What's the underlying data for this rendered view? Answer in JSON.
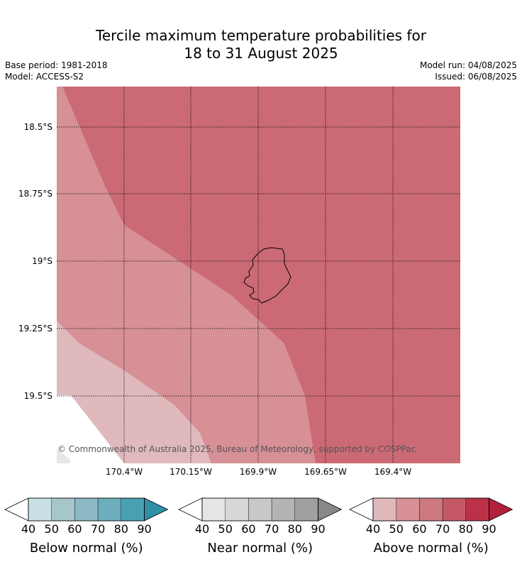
{
  "header": {
    "title_line1": "Tercile maximum temperature probabilities for",
    "title_line2": "18 to 31 August 2025",
    "base_period": "Base period: 1981-2018",
    "model": "Model: ACCESS-S2",
    "model_run": "Model run: 04/08/2025",
    "issued": "Issued: 06/08/2025"
  },
  "map": {
    "lat_labels": [
      "18.5°S",
      "18.75°S",
      "19°S",
      "19.25°S",
      "19.5°S"
    ],
    "lon_labels": [
      "170.4°W",
      "170.15°W",
      "169.9°W",
      "169.65°W",
      "169.4°W"
    ],
    "copyright": "© Commonwealth of Australia 2025, Bureau of Meteorology, supported by COSPPac"
  },
  "colorbars": [
    {
      "name": "below",
      "title": "Below normal (%)",
      "ticks": [
        "40",
        "50",
        "60",
        "70",
        "80",
        "90"
      ],
      "colors": [
        "#c9e0e6",
        "#a6c6ca",
        "#8bb8c3",
        "#6caebd",
        "#4aa0b1",
        "#2e8fa5"
      ]
    },
    {
      "name": "near",
      "title": "Near normal (%)",
      "ticks": [
        "40",
        "50",
        "60",
        "70",
        "80",
        "90"
      ],
      "colors": [
        "#e5e5e5",
        "#d7d7d7",
        "#c8c8c8",
        "#b4b4b4",
        "#a0a0a0",
        "#888888"
      ]
    },
    {
      "name": "above",
      "title": "Above normal (%)",
      "ticks": [
        "40",
        "50",
        "60",
        "70",
        "80",
        "90"
      ],
      "colors": [
        "#e0b9bd",
        "#d69096",
        "#cc7a80",
        "#c45865",
        "#bc3048",
        "#b3203c"
      ]
    }
  ],
  "legend_colors": {
    "above_40_50": "#e0b9bd",
    "above_50_60": "#d69096",
    "above_60_70": "#cb6a75",
    "below_40_50": "#e6e6e6"
  }
}
